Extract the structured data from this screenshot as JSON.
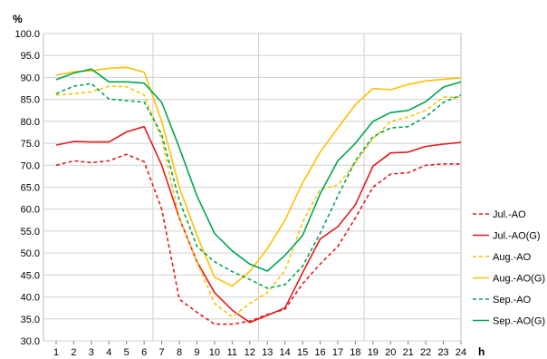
{
  "chart_data": {
    "type": "line",
    "x_unit": "h",
    "y_unit": "%",
    "x": [
      1,
      2,
      3,
      4,
      5,
      6,
      7,
      8,
      9,
      10,
      11,
      12,
      13,
      14,
      15,
      16,
      17,
      18,
      19,
      20,
      21,
      22,
      23,
      24
    ],
    "xlim": [
      1,
      24
    ],
    "ylim": [
      30,
      100
    ],
    "ytick_labels": [
      "30.0",
      "35.0",
      "40.0",
      "45.0",
      "50.0",
      "55.0",
      "60.0",
      "65.0",
      "70.0",
      "75.0",
      "80.0",
      "85.0",
      "90.0",
      "95.0",
      "100.0"
    ],
    "grid": "horizontal and vertical",
    "legend_position": "right",
    "series": [
      {
        "name": "Jul.-AO",
        "color": "#e31a1c",
        "dashed": true,
        "values": [
          70.0,
          71.0,
          70.6,
          71.0,
          72.5,
          70.8,
          60.0,
          39.5,
          36.5,
          33.8,
          33.8,
          34.5,
          36.0,
          37.2,
          43.0,
          47.5,
          51.5,
          58.0,
          65.0,
          68.0,
          68.3,
          70.0,
          70.3,
          70.3
        ]
      },
      {
        "name": "Jul.-AO(G)",
        "color": "#e31a1c",
        "dashed": false,
        "values": [
          74.6,
          75.4,
          75.3,
          75.3,
          77.6,
          78.8,
          70.0,
          58.0,
          48.0,
          41.0,
          37.0,
          34.2,
          35.8,
          37.5,
          45.5,
          53.2,
          56.0,
          61.0,
          69.8,
          72.8,
          73.0,
          74.3,
          74.8,
          75.2
        ]
      },
      {
        "name": "Aug.-AO",
        "color": "#ffc000",
        "dashed": true,
        "values": [
          86.0,
          86.3,
          86.7,
          88.0,
          87.9,
          86.0,
          76.0,
          58.0,
          48.0,
          38.5,
          35.5,
          38.5,
          41.0,
          46.0,
          57.0,
          64.5,
          65.5,
          70.5,
          76.0,
          80.0,
          81.0,
          82.5,
          85.5,
          85.5
        ]
      },
      {
        "name": "Aug.-AO(G)",
        "color": "#ffc000",
        "dashed": false,
        "values": [
          90.5,
          91.3,
          91.5,
          92.1,
          92.3,
          91.2,
          80.0,
          65.0,
          54.0,
          44.5,
          42.5,
          45.8,
          51.0,
          57.5,
          66.0,
          73.0,
          78.5,
          83.8,
          87.5,
          87.2,
          88.4,
          89.2,
          89.6,
          89.9
        ]
      },
      {
        "name": "Sep.-AO",
        "color": "#00a651",
        "dashed": true,
        "values": [
          86.3,
          88.0,
          88.6,
          85.1,
          84.7,
          84.4,
          77.0,
          62.0,
          51.5,
          48.0,
          45.8,
          44.0,
          42.0,
          42.8,
          47.0,
          54.5,
          63.0,
          71.0,
          76.5,
          78.5,
          78.8,
          81.0,
          84.3,
          86.0
        ]
      },
      {
        "name": "Sep.-AO(G)",
        "color": "#00a651",
        "dashed": false,
        "values": [
          89.5,
          91.0,
          91.9,
          89.0,
          89.0,
          88.7,
          84.3,
          74.0,
          63.0,
          54.5,
          50.5,
          47.5,
          45.9,
          49.5,
          54.0,
          63.5,
          71.0,
          75.0,
          80.0,
          82.0,
          82.5,
          84.5,
          87.8,
          89.0
        ]
      }
    ]
  }
}
